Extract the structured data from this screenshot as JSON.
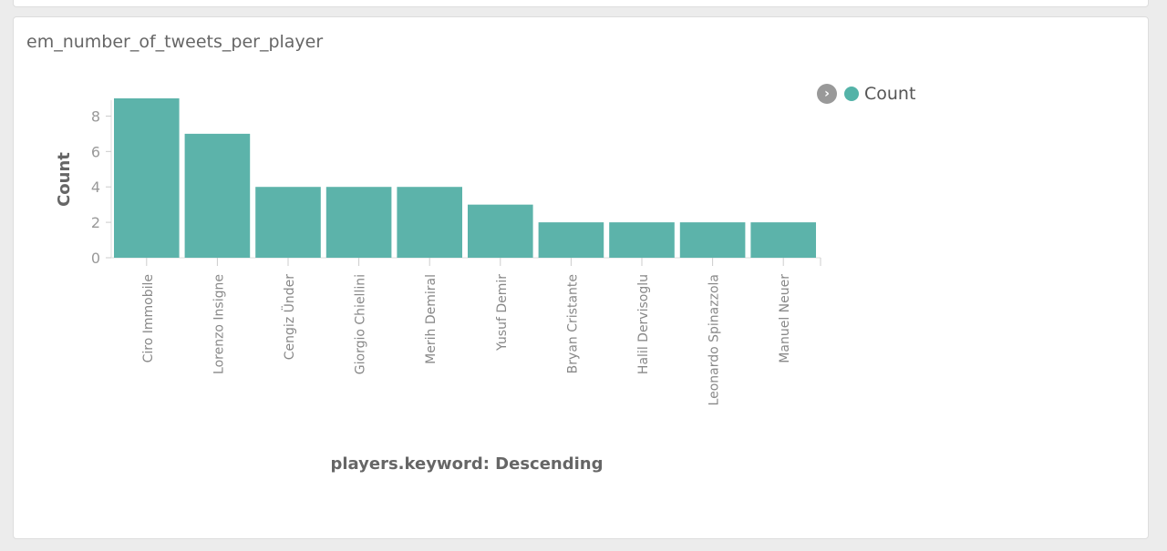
{
  "panel": {
    "title": "em_number_of_tweets_per_player"
  },
  "legend": {
    "toggle_icon": "chevron-right-circle-icon",
    "items": [
      {
        "label": "Count",
        "color": "#54b3a8"
      }
    ]
  },
  "chart_data": {
    "type": "bar",
    "categories": [
      "Ciro Immobile",
      "Lorenzo Insigne",
      "Cengiz Ünder",
      "Giorgio Chiellini",
      "Merih Demiral",
      "Yusuf Demir",
      "Bryan Cristante",
      "Halil Dervisoglu",
      "Leonardo Spinazzola",
      "Manuel Neuer"
    ],
    "series": [
      {
        "name": "Count",
        "values": [
          9,
          7,
          4,
          4,
          4,
          3,
          2,
          2,
          2,
          2
        ]
      }
    ],
    "xlabel": "players.keyword: Descending",
    "ylabel": "Count",
    "ylim": [
      0,
      9
    ],
    "yticks": [
      0,
      2,
      4,
      6,
      8
    ],
    "grid": false,
    "legend_position": "top-right",
    "bar_color": "#5cb3aa"
  }
}
